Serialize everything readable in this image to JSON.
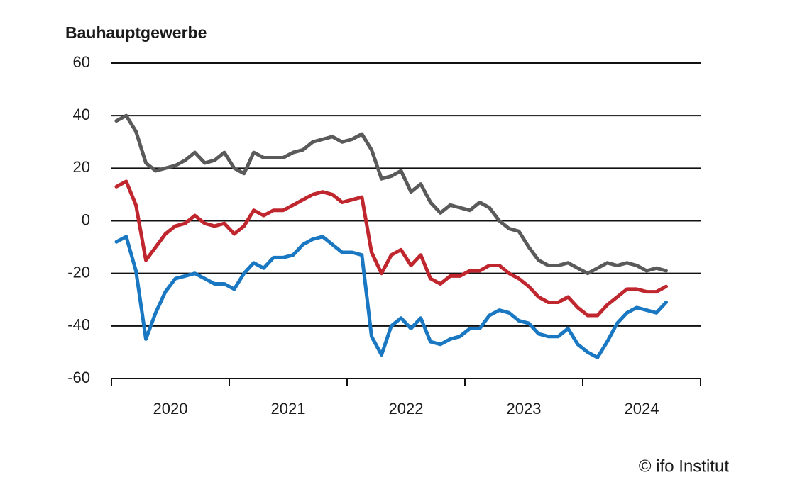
{
  "chart_data": {
    "type": "line",
    "title": "Bauhauptgewerbe",
    "source": "© ifo Institut",
    "x": [
      2020.042,
      2020.125,
      2020.208,
      2020.292,
      2020.375,
      2020.458,
      2020.542,
      2020.625,
      2020.708,
      2020.792,
      2020.875,
      2020.958,
      2021.042,
      2021.125,
      2021.208,
      2021.292,
      2021.375,
      2021.458,
      2021.542,
      2021.625,
      2021.708,
      2021.792,
      2021.875,
      2021.958,
      2022.042,
      2022.125,
      2022.208,
      2022.292,
      2022.375,
      2022.458,
      2022.542,
      2022.625,
      2022.708,
      2022.792,
      2022.875,
      2022.958,
      2023.042,
      2023.125,
      2023.208,
      2023.292,
      2023.375,
      2023.458,
      2023.542,
      2023.625,
      2023.708,
      2023.792,
      2023.875,
      2023.958,
      2024.042,
      2024.125,
      2024.208,
      2024.292,
      2024.375,
      2024.458,
      2024.542,
      2024.625,
      2024.708
    ],
    "series": [
      {
        "color": "#5a5a5a",
        "values": [
          38,
          40,
          34,
          22,
          19,
          20,
          21,
          23,
          26,
          22,
          23,
          26,
          20,
          18,
          26,
          24,
          24,
          24,
          26,
          27,
          30,
          31,
          32,
          30,
          31,
          33,
          27,
          16,
          17,
          19,
          11,
          14,
          7,
          3,
          6,
          5,
          4,
          7,
          5,
          0,
          -3,
          -4,
          -10,
          -15,
          -17,
          -17,
          -16,
          -18,
          -20,
          -18,
          -16,
          -17,
          -16,
          -17,
          -19,
          -18,
          -19
        ]
      },
      {
        "color": "#c0262d",
        "values": [
          13,
          15,
          6,
          -15,
          -10,
          -5,
          -2,
          -1,
          2,
          -1,
          -2,
          -1,
          -5,
          -2,
          4,
          2,
          4,
          4,
          6,
          8,
          10,
          11,
          10,
          7,
          8,
          9,
          -12,
          -20,
          -13,
          -11,
          -17,
          -13,
          -22,
          -24,
          -21,
          -21,
          -19,
          -19,
          -17,
          -17,
          -20,
          -22,
          -25,
          -29,
          -31,
          -31,
          -29,
          -33,
          -36,
          -36,
          -32,
          -29,
          -26,
          -26,
          -27,
          -27,
          -25
        ]
      },
      {
        "color": "#1a78c2",
        "values": [
          -8,
          -6,
          -19,
          -45,
          -35,
          -27,
          -22,
          -21,
          -20,
          -22,
          -24,
          -24,
          -26,
          -20,
          -16,
          -18,
          -14,
          -14,
          -13,
          -9,
          -7,
          -6,
          -9,
          -12,
          -12,
          -13,
          -44,
          -51,
          -40,
          -37,
          -41,
          -37,
          -46,
          -47,
          -45,
          -44,
          -41,
          -41,
          -36,
          -34,
          -35,
          -38,
          -39,
          -43,
          -44,
          -44,
          -41,
          -47,
          -50,
          -52,
          -46,
          -39,
          -35,
          -33,
          -34,
          -35,
          -31
        ]
      }
    ],
    "xlim": [
      2020,
      2025
    ],
    "xticks": [
      2020,
      2021,
      2022,
      2023,
      2024,
      2025
    ],
    "year_labels": [
      "2020",
      "2021",
      "2022",
      "2023",
      "2024"
    ],
    "ylim": [
      -60,
      60
    ],
    "yticks": [
      -60,
      -40,
      -20,
      0,
      20,
      40,
      60
    ],
    "grid": true
  }
}
